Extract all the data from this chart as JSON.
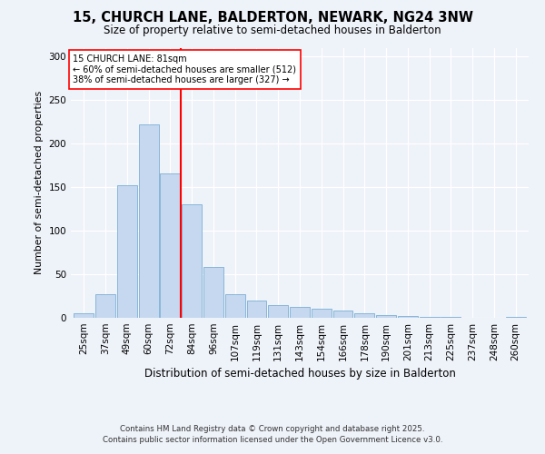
{
  "title1": "15, CHURCH LANE, BALDERTON, NEWARK, NG24 3NW",
  "title2": "Size of property relative to semi-detached houses in Balderton",
  "xlabel": "Distribution of semi-detached houses by size in Balderton",
  "ylabel": "Number of semi-detached properties",
  "categories": [
    "25sqm",
    "37sqm",
    "49sqm",
    "60sqm",
    "72sqm",
    "84sqm",
    "96sqm",
    "107sqm",
    "119sqm",
    "131sqm",
    "143sqm",
    "154sqm",
    "166sqm",
    "178sqm",
    "190sqm",
    "201sqm",
    "213sqm",
    "225sqm",
    "237sqm",
    "248sqm",
    "260sqm"
  ],
  "values": [
    5,
    27,
    152,
    222,
    166,
    130,
    58,
    27,
    20,
    15,
    12,
    10,
    8,
    5,
    3,
    2,
    1,
    1,
    0,
    0,
    1
  ],
  "bar_color": "#c5d8ef",
  "bar_edge_color": "#7bafd4",
  "vline_x_index": 5,
  "vline_label": "15 CHURCH LANE: 81sqm",
  "pct_smaller": "60% of semi-detached houses are smaller (512)",
  "pct_larger": "38% of semi-detached houses are larger (327)",
  "ylim": [
    0,
    310
  ],
  "yticks": [
    0,
    50,
    100,
    150,
    200,
    250,
    300
  ],
  "footnote1": "Contains HM Land Registry data © Crown copyright and database right 2025.",
  "footnote2": "Contains public sector information licensed under the Open Government Licence v3.0.",
  "bg_color": "#eef2f9",
  "grid_color": "#ffffff"
}
